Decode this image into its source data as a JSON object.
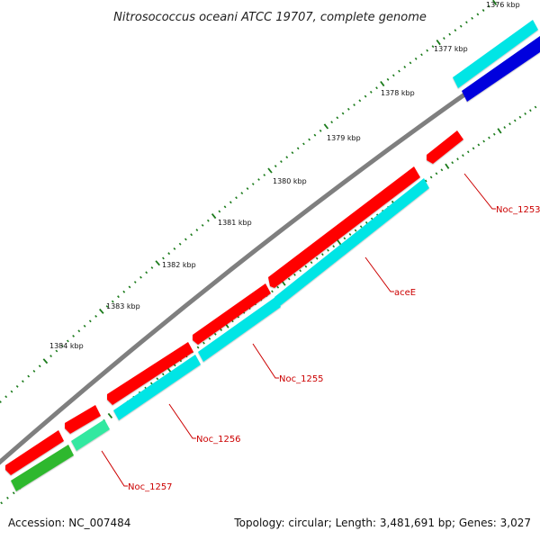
{
  "title": "Nitrosococcus oceani ATCC 19707, complete genome",
  "footer": {
    "accession": "Accession: NC_007484",
    "topology": "Topology: circular; Length: 3,481,691 bp; Genes: 3,027"
  },
  "colors": {
    "backbone": "#808080",
    "tick": "#1a7a1a",
    "forward_gene": "#ff0000",
    "reverse_cds": "#00e5e5",
    "blue_feature": "#0000dd",
    "teal_feature": "#33e8a0",
    "green_feature": "#2eb82e",
    "label_line": "#cc0000"
  },
  "kbp_labels": [
    "1376 kbp",
    "1377 kbp",
    "1378 kbp",
    "1379 kbp",
    "1380 kbp",
    "1381 kbp",
    "1382 kbp",
    "1383 kbp",
    "1384 kbp"
  ],
  "gene_labels": [
    "Noc_1253",
    "aceE",
    "Noc_1255",
    "Noc_1256",
    "Noc_1257"
  ]
}
